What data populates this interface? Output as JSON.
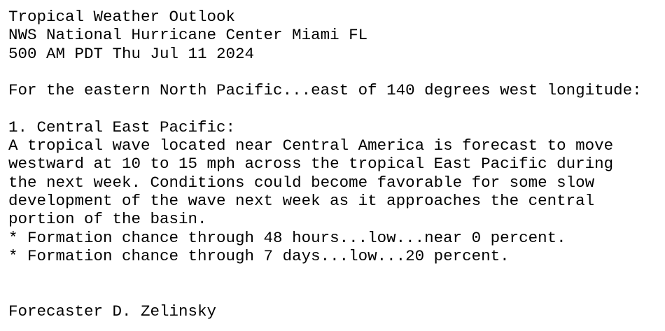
{
  "header": {
    "title": "Tropical Weather Outlook",
    "office": "NWS National Hurricane Center Miami FL",
    "issued": "500 AM PDT Thu Jul 11 2024"
  },
  "intro": "For the eastern North Pacific...east of 140 degrees west longitude:",
  "systems": [
    {
      "heading": "1. Central East Pacific:",
      "lines": [
        "A tropical wave located near Central America is forecast to move",
        "westward at 10 to 15 mph across the tropical East Pacific during",
        "the next week. Conditions could become favorable for some slow",
        "development of the wave next week as it approaches the central",
        "portion of the basin."
      ],
      "bullets": [
        "* Formation chance through 48 hours...low...near 0 percent.",
        "* Formation chance through 7 days...low...20 percent."
      ]
    }
  ],
  "forecaster": "Forecaster D. Zelinsky"
}
